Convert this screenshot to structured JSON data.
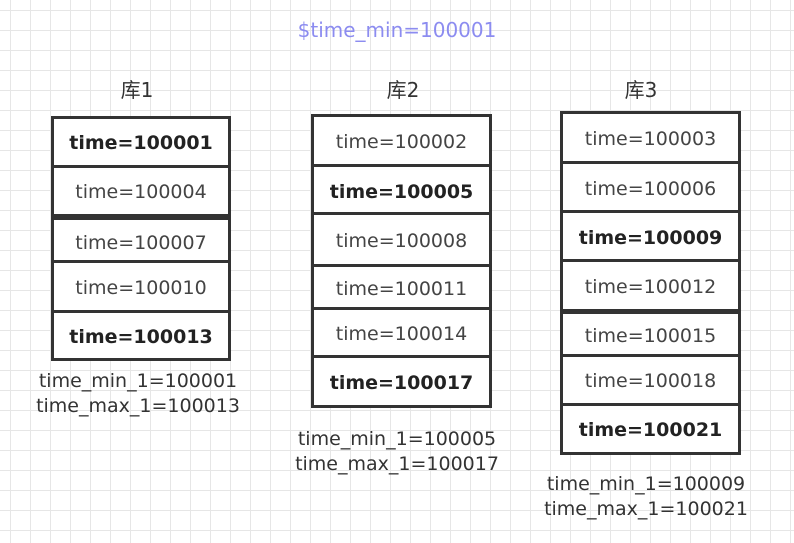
{
  "title": "$time_min=100001",
  "databases": [
    {
      "label": "库1",
      "cells": [
        {
          "text": "time=100001",
          "bold": true
        },
        {
          "text": "time=100004",
          "bold": false
        },
        {
          "text": "time=100007",
          "bold": false
        },
        {
          "text": "time=100010",
          "bold": false
        },
        {
          "text": "time=100013",
          "bold": true
        }
      ],
      "time_min": "time_min_1=100001",
      "time_max": "time_max_1=100013"
    },
    {
      "label": "库2",
      "cells": [
        {
          "text": "time=100002",
          "bold": false
        },
        {
          "text": "time=100005",
          "bold": true
        },
        {
          "text": "time=100008",
          "bold": false
        },
        {
          "text": "time=100011",
          "bold": false
        },
        {
          "text": "time=100014",
          "bold": false
        },
        {
          "text": "time=100017",
          "bold": true
        }
      ],
      "time_min": "time_min_1=100005",
      "time_max": "time_max_1=100017"
    },
    {
      "label": "库3",
      "cells": [
        {
          "text": "time=100003",
          "bold": false
        },
        {
          "text": "time=100006",
          "bold": false
        },
        {
          "text": "time=100009",
          "bold": true
        },
        {
          "text": "time=100012",
          "bold": false
        },
        {
          "text": "time=100015",
          "bold": false
        },
        {
          "text": "time=100018",
          "bold": false
        },
        {
          "text": "time=100021",
          "bold": true
        }
      ],
      "time_min": "time_min_1=100009",
      "time_max": "time_max_1=100021"
    }
  ]
}
